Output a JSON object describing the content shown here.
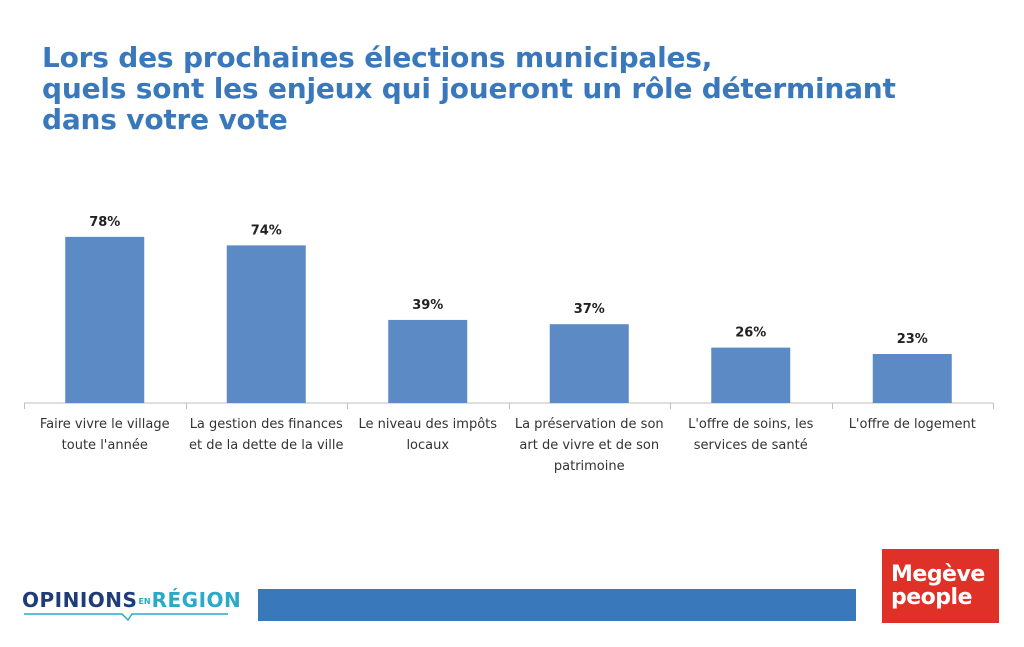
{
  "title_lines": [
    "Lors des prochaines élections municipales,",
    "quels sont les enjeux qui joueront un rôle déterminant",
    "dans votre vote"
  ],
  "chart_data": {
    "type": "bar",
    "categories": [
      [
        "Faire vivre le village",
        "toute l'année"
      ],
      [
        "La gestion des finances",
        "et de la dette de la ville"
      ],
      [
        "Le niveau des impôts",
        "locaux"
      ],
      [
        "La préservation de son",
        "art de vivre et de son",
        "patrimoine"
      ],
      [
        "L'offre de soins, les",
        "services de santé"
      ],
      [
        "L'offre de logement"
      ]
    ],
    "values": [
      78,
      74,
      39,
      37,
      26,
      23
    ],
    "data_labels": [
      "78%",
      "74%",
      "39%",
      "37%",
      "26%",
      "23%"
    ],
    "unit": "%",
    "ylim": [
      0,
      100
    ],
    "grid": false,
    "legend": "none",
    "bar_color": "#5b8ac4",
    "axis_color": "#bfbfbf"
  },
  "footer": {
    "left_logo": {
      "opinions": "OPINIONS",
      "en": "EN",
      "region": "RÉGION"
    },
    "right_logo": {
      "line1": "Megève",
      "line2": "people"
    },
    "band_color": "#3a78bc"
  }
}
